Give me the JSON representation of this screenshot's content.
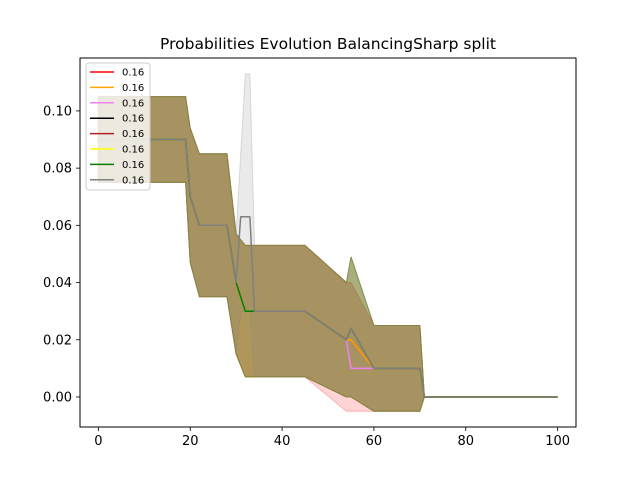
{
  "chart_data": {
    "type": "line",
    "title": "Probabilities Evolution BalancingSharp split",
    "xlabel": "",
    "ylabel": "",
    "xlim": [
      -4,
      104
    ],
    "ylim": [
      -0.0105,
      0.1185
    ],
    "xticks": [
      0,
      20,
      40,
      60,
      80,
      100
    ],
    "yticks": [
      0.0,
      0.02,
      0.04,
      0.06,
      0.08,
      0.1
    ],
    "ytick_labels": [
      "0.00",
      "0.02",
      "0.04",
      "0.06",
      "0.08",
      "0.10"
    ],
    "grid": false,
    "legend_position": "top-left",
    "series": [
      {
        "name": "0.16",
        "color": "#ff0000",
        "x": [
          0,
          19,
          20,
          22,
          28,
          30,
          32,
          45,
          54,
          55,
          60,
          70,
          71,
          100
        ],
        "y": [
          0.09,
          0.09,
          0.07,
          0.06,
          0.06,
          0.04,
          0.03,
          0.03,
          0.02,
          0.02,
          0.01,
          0.01,
          0.0,
          0.0
        ],
        "band_lower": [
          0.075,
          0.075,
          0.047,
          0.035,
          0.035,
          0.015,
          0.007,
          0.007,
          -0.005,
          -0.005,
          -0.005,
          -0.005,
          0.0,
          0.0
        ],
        "band_upper": [
          0.105,
          0.105,
          0.094,
          0.085,
          0.085,
          0.057,
          0.053,
          0.053,
          0.04,
          0.04,
          0.025,
          0.025,
          0.0,
          0.0
        ]
      },
      {
        "name": "0.16",
        "color": "#ffa500",
        "x": [
          0,
          19,
          20,
          22,
          28,
          30,
          32,
          45,
          54,
          55,
          60,
          70,
          71,
          100
        ],
        "y": [
          0.09,
          0.09,
          0.07,
          0.06,
          0.06,
          0.04,
          0.03,
          0.03,
          0.02,
          0.02,
          0.01,
          0.01,
          0.0,
          0.0
        ],
        "band_lower": [
          0.075,
          0.075,
          0.047,
          0.035,
          0.035,
          0.015,
          0.007,
          0.007,
          0.0,
          0.0,
          -0.005,
          -0.005,
          0.0,
          0.0
        ],
        "band_upper": [
          0.105,
          0.105,
          0.094,
          0.085,
          0.085,
          0.057,
          0.053,
          0.053,
          0.04,
          0.04,
          0.025,
          0.025,
          0.0,
          0.0
        ]
      },
      {
        "name": "0.16",
        "color": "#ee82ee",
        "x": [
          0,
          19,
          20,
          22,
          28,
          30,
          32,
          45,
          54,
          55,
          60,
          70,
          71,
          100
        ],
        "y": [
          0.09,
          0.09,
          0.07,
          0.06,
          0.06,
          0.04,
          0.03,
          0.03,
          0.02,
          0.01,
          0.01,
          0.01,
          0.0,
          0.0
        ],
        "band_lower": [
          0.075,
          0.075,
          0.047,
          0.035,
          0.035,
          0.015,
          0.007,
          0.007,
          0.0,
          0.0,
          -0.005,
          -0.005,
          0.0,
          0.0
        ],
        "band_upper": [
          0.105,
          0.105,
          0.094,
          0.085,
          0.085,
          0.057,
          0.053,
          0.053,
          0.04,
          0.04,
          0.025,
          0.025,
          0.0,
          0.0
        ]
      },
      {
        "name": "0.16",
        "color": "#000000",
        "x": [
          0,
          19,
          20,
          22,
          28,
          30,
          32,
          45,
          54,
          55,
          60,
          70,
          71,
          100
        ],
        "y": [
          0.09,
          0.09,
          0.07,
          0.06,
          0.06,
          0.04,
          0.03,
          0.03,
          0.02,
          0.024,
          0.01,
          0.01,
          0.0,
          0.0
        ],
        "band_lower": [
          0.075,
          0.075,
          0.047,
          0.035,
          0.035,
          0.015,
          0.007,
          0.007,
          0.0,
          0.0,
          -0.005,
          -0.005,
          0.0,
          0.0
        ],
        "band_upper": [
          0.105,
          0.105,
          0.094,
          0.085,
          0.085,
          0.057,
          0.053,
          0.053,
          0.04,
          0.049,
          0.025,
          0.025,
          0.0,
          0.0
        ]
      },
      {
        "name": "0.16",
        "color": "#b22222",
        "x": [
          0,
          19,
          20,
          22,
          28,
          30,
          32,
          45,
          54,
          55,
          60,
          70,
          71,
          100
        ],
        "y": [
          0.09,
          0.09,
          0.07,
          0.06,
          0.06,
          0.04,
          0.03,
          0.03,
          0.02,
          0.024,
          0.01,
          0.01,
          0.0,
          0.0
        ],
        "band_lower": [
          0.075,
          0.075,
          0.047,
          0.035,
          0.035,
          0.015,
          0.007,
          0.007,
          0.0,
          0.0,
          -0.005,
          -0.005,
          0.0,
          0.0
        ],
        "band_upper": [
          0.105,
          0.105,
          0.094,
          0.085,
          0.085,
          0.057,
          0.053,
          0.053,
          0.04,
          0.049,
          0.025,
          0.025,
          0.0,
          0.0
        ]
      },
      {
        "name": "0.16",
        "color": "#ffff00",
        "x": [
          0,
          19,
          20,
          22,
          28,
          30,
          32,
          45,
          54,
          55,
          60,
          70,
          71,
          100
        ],
        "y": [
          0.09,
          0.09,
          0.07,
          0.06,
          0.06,
          0.04,
          0.03,
          0.03,
          0.02,
          0.024,
          0.01,
          0.01,
          0.0,
          0.0
        ],
        "band_lower": [
          0.075,
          0.075,
          0.047,
          0.035,
          0.035,
          0.015,
          0.007,
          0.007,
          0.0,
          0.0,
          -0.005,
          -0.005,
          0.0,
          0.0
        ],
        "band_upper": [
          0.105,
          0.105,
          0.094,
          0.085,
          0.085,
          0.057,
          0.053,
          0.053,
          0.04,
          0.049,
          0.025,
          0.025,
          0.0,
          0.0
        ]
      },
      {
        "name": "0.16",
        "color": "#008000",
        "x": [
          0,
          19,
          20,
          22,
          28,
          30,
          32,
          45,
          54,
          55,
          60,
          70,
          71,
          100
        ],
        "y": [
          0.09,
          0.09,
          0.07,
          0.06,
          0.06,
          0.04,
          0.03,
          0.03,
          0.02,
          0.024,
          0.01,
          0.01,
          0.0,
          0.0
        ],
        "band_lower": [
          0.075,
          0.075,
          0.047,
          0.035,
          0.035,
          0.015,
          0.007,
          0.007,
          0.0,
          0.0,
          -0.005,
          -0.005,
          0.0,
          0.0
        ],
        "band_upper": [
          0.105,
          0.105,
          0.094,
          0.085,
          0.085,
          0.057,
          0.053,
          0.053,
          0.04,
          0.049,
          0.025,
          0.025,
          0.0,
          0.0
        ]
      },
      {
        "name": "0.16",
        "color": "#808080",
        "x": [
          0,
          19,
          20,
          22,
          28,
          30,
          31,
          32,
          33,
          34,
          45,
          54,
          55,
          60,
          70,
          71,
          100
        ],
        "y": [
          0.09,
          0.09,
          0.07,
          0.06,
          0.06,
          0.04,
          0.063,
          0.063,
          0.063,
          0.03,
          0.03,
          0.02,
          0.024,
          0.01,
          0.01,
          0.0,
          0.0
        ],
        "band_lower": [
          0.075,
          0.075,
          0.047,
          0.035,
          0.035,
          0.015,
          0.03,
          0.03,
          0.03,
          0.007,
          0.007,
          0.0,
          0.0,
          -0.005,
          -0.005,
          0.0,
          0.0
        ],
        "band_upper": [
          0.105,
          0.105,
          0.094,
          0.085,
          0.085,
          0.057,
          0.085,
          0.113,
          0.113,
          0.053,
          0.053,
          0.04,
          0.049,
          0.025,
          0.025,
          0.0,
          0.0
        ]
      }
    ]
  }
}
